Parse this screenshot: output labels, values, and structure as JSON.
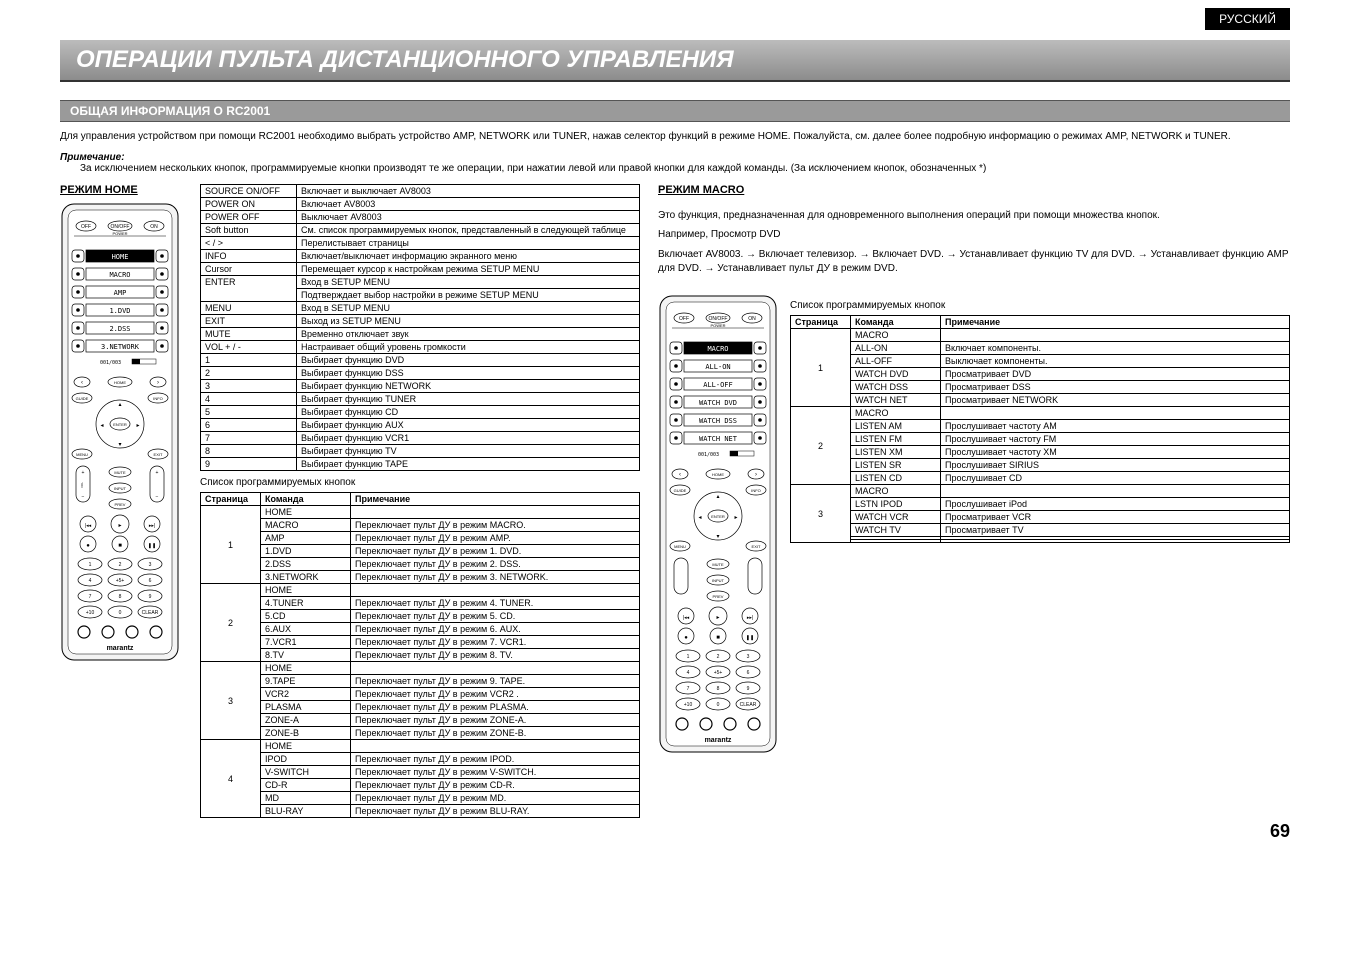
{
  "language_tab": "РУССКИЙ",
  "main_title": "ОПЕРАЦИИ ПУЛЬТА ДИСТАНЦИОННОГО УПРАВЛЕНИЯ",
  "section_title": "ОБЩАЯ ИНФОРМАЦИЯ О RC2001",
  "intro_text": "Для управления устройством при помощи RC2001 необходимо выбрать устройство AMP, NETWORK или TUNER, нажав селектор функций в режиме HOME. Пожалуйста, см. далее более подробную информацию о режимах AMP, NETWORK и TUNER.",
  "note_label": "Примечание:",
  "note_text": "За исключением нескольких кнопок, программируемые кнопки производят те же операции, при нажатии левой или правой кнопки для каждой команды. (За исключением кнопок, обозначенных *)",
  "mode_home_title": "РЕЖИМ HOME",
  "mode_macro_title": "РЕЖИМ MACRO",
  "remote_display_home": [
    "HOME",
    "MACRO",
    "AMP",
    "1.DVD",
    "2.DSS",
    "3.NETWORK"
  ],
  "remote_display_macro": [
    "MACRO",
    "ALL-ON",
    "ALL-OFF",
    "WATCH DVD",
    "WATCH DSS",
    "WATCH NET"
  ],
  "remote_brand": "marantz",
  "home_basic_table": {
    "rows": [
      [
        "SOURCE ON/OFF",
        "Включает и выключает AV8003"
      ],
      [
        "POWER ON",
        "Включает AV8003"
      ],
      [
        "POWER OFF",
        "Выключает AV8003"
      ],
      [
        "Soft button",
        "См. список программируемых кнопок, представленный в следующей таблице"
      ],
      [
        "< / >",
        "Перелистывает страницы"
      ],
      [
        "INFO",
        "Включает/выключает информацию экранного меню"
      ],
      [
        "Cursor",
        "Перемещает курсор к настройкам режима SETUP MENU"
      ],
      [
        "ENTER",
        "Вход в SETUP MENU"
      ],
      [
        "",
        "Подтверждает выбор настройки в режиме SETUP MENU"
      ],
      [
        "MENU",
        "Вход в SETUP MENU"
      ],
      [
        "EXIT",
        "Выход из SETUP MENU"
      ],
      [
        "MUTE",
        "Временно отключает звук"
      ],
      [
        "VOL + / -",
        "Настраивает общий уровень громкости"
      ],
      [
        "1",
        "Выбирает функцию DVD"
      ],
      [
        "2",
        "Выбирает функцию DSS"
      ],
      [
        "3",
        "Выбирает функцию NETWORK"
      ],
      [
        "4",
        "Выбирает функцию TUNER"
      ],
      [
        "5",
        "Выбирает функцию CD"
      ],
      [
        "6",
        "Выбирает функцию AUX"
      ],
      [
        "7",
        "Выбирает функцию VCR1"
      ],
      [
        "8",
        "Выбирает функцию TV"
      ],
      [
        "9",
        "Выбирает функцию TAPE"
      ]
    ]
  },
  "prog_caption": "Список программируемых кнопок",
  "prog_table_headers": [
    "Страница",
    "Команда",
    "Примечание"
  ],
  "prog_table_groups": [
    {
      "page": "1",
      "rows": [
        [
          "HOME",
          ""
        ],
        [
          "MACRO",
          "Переключает пульт ДУ в режим MACRO."
        ],
        [
          "AMP",
          "Переключает пульт ДУ в режим AMP."
        ],
        [
          "1.DVD",
          "Переключает пульт ДУ в режим 1. DVD."
        ],
        [
          "2.DSS",
          "Переключает пульт ДУ в режим 2. DSS."
        ],
        [
          "3.NETWORK",
          "Переключает пульт ДУ в режим 3. NETWORK."
        ]
      ]
    },
    {
      "page": "2",
      "rows": [
        [
          "HOME",
          ""
        ],
        [
          "4.TUNER",
          "Переключает пульт ДУ в режим 4. TUNER."
        ],
        [
          "5.CD",
          "Переключает пульт ДУ в режим 5. CD."
        ],
        [
          "6.AUX",
          "Переключает пульт ДУ в режим 6. AUX."
        ],
        [
          "7.VCR1",
          "Переключает пульт ДУ в режим 7. VCR1."
        ],
        [
          "8.TV",
          "Переключает пульт ДУ в режим 8. TV."
        ]
      ]
    },
    {
      "page": "3",
      "rows": [
        [
          "HOME",
          ""
        ],
        [
          "9.TAPE",
          "Переключает пульт ДУ в режим 9. TAPE."
        ],
        [
          "VCR2",
          "Переключает пульт ДУ в режим VCR2 ."
        ],
        [
          "PLASMA",
          "Переключает пульт ДУ в режим PLASMA."
        ],
        [
          "ZONE-A",
          "Переключает пульт ДУ в режим ZONE-A."
        ],
        [
          "ZONE-B",
          "Переключает пульт ДУ в режим ZONE-B."
        ]
      ]
    },
    {
      "page": "4",
      "rows": [
        [
          "HOME",
          ""
        ],
        [
          "IPOD",
          "Переключает пульт ДУ в режим IPOD."
        ],
        [
          "V-SWITCH",
          "Переключает пульт ДУ в режим V-SWITCH."
        ],
        [
          "CD-R",
          "Переключает пульт ДУ в режим CD-R."
        ],
        [
          "MD",
          "Переключает пульт ДУ в режим MD."
        ],
        [
          "BLU-RAY",
          "Переключает пульт ДУ в режим BLU-RAY."
        ]
      ]
    }
  ],
  "macro_intro1": "Это функция, предназначенная для одновременного выполнения операций при помощи множества кнопок.",
  "macro_intro2": "Например, Просмотр DVD",
  "macro_intro3": "Включает AV8003. → Включает телевизор. → Включает DVD. → Устанавливает функцию TV для DVD. → Устанавливает функцию AMP для DVD. → Устанавливает пульт ДУ в режим DVD.",
  "macro_table_groups": [
    {
      "page": "1",
      "rows": [
        [
          "MACRO",
          ""
        ],
        [
          "ALL-ON",
          "Включает компоненты."
        ],
        [
          "ALL-OFF",
          "Выключает компоненты."
        ],
        [
          "WATCH DVD",
          "Просматривает DVD"
        ],
        [
          "WATCH DSS",
          "Просматривает DSS"
        ],
        [
          "WATCH NET",
          "Просматривает NETWORK"
        ]
      ]
    },
    {
      "page": "2",
      "rows": [
        [
          "MACRO",
          ""
        ],
        [
          "LISTEN AM",
          "Прослушивает частоту AM"
        ],
        [
          "LISTEN FM",
          "Прослушивает частоту FM"
        ],
        [
          "LISTEN XM",
          "Прослушивает частоту XM"
        ],
        [
          "LISTEN SR",
          "Прослушивает SIRIUS"
        ],
        [
          "LISTEN CD",
          "Прослушивает CD"
        ]
      ]
    },
    {
      "page": "3",
      "rows": [
        [
          "MACRO",
          ""
        ],
        [
          "LSTN IPOD",
          "Прослушивает iPod"
        ],
        [
          "WATCH VCR",
          "Просматривает VCR"
        ],
        [
          "WATCH TV",
          "Просматривает TV"
        ],
        [
          "",
          ""
        ],
        [
          "",
          ""
        ]
      ]
    }
  ],
  "page_number": "69",
  "colors": {
    "title_gradient_top": "#bcbcbc",
    "title_gradient_bottom": "#8c8c8c",
    "section_bg": "#9a9a9a",
    "border": "#000000",
    "text": "#000000",
    "tab_bg": "#000000",
    "tab_text": "#ffffff"
  }
}
